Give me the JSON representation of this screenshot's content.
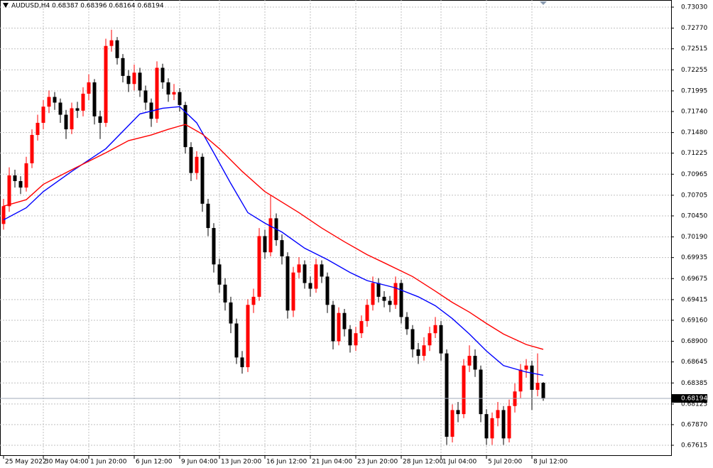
{
  "chart_data": {
    "type": "candlestick",
    "title": "AUDUSD,H4  0.68387 0.68396 0.68164 0.68194",
    "categories": [
      "25 May 2022",
      null,
      null,
      null,
      null,
      null,
      null,
      "30 May 04:00",
      null,
      null,
      null,
      null,
      null,
      null,
      null,
      "1 Jun 20:00",
      null,
      null,
      null,
      null,
      null,
      null,
      null,
      "6 Jun 12:00",
      null,
      null,
      null,
      null,
      null,
      null,
      null,
      "9 Jun 04:00",
      null,
      null,
      null,
      null,
      null,
      null,
      "13 Jun 20:00",
      null,
      null,
      null,
      null,
      null,
      null,
      null,
      "16 Jun 12:00",
      null,
      null,
      null,
      null,
      null,
      null,
      null,
      "21 Jun 04:00",
      null,
      null,
      null,
      null,
      null,
      null,
      null,
      "23 Jun 20:00",
      null,
      null,
      null,
      null,
      null,
      null,
      null,
      "28 Jun 12:00",
      null,
      null,
      null,
      null,
      null,
      null,
      "1 Jul 04:00",
      null,
      null,
      null,
      null,
      null,
      null,
      null,
      "5 Jul 20:00",
      null,
      null,
      null,
      null,
      null,
      null,
      null,
      "8 Jul 12:00",
      null,
      null
    ],
    "open": [
      0.7035,
      0.7057,
      0.7095,
      0.7088,
      0.708,
      0.711,
      0.7145,
      0.716,
      0.718,
      0.7192,
      0.7185,
      0.717,
      0.7152,
      0.7178,
      0.7175,
      0.7196,
      0.721,
      0.7168,
      0.716,
      0.7255,
      0.7262,
      0.724,
      0.7218,
      0.7208,
      0.7222,
      0.72,
      0.7185,
      0.7165,
      0.7228,
      0.721,
      0.7195,
      0.7198,
      0.7182,
      0.713,
      0.7098,
      0.7118,
      0.706,
      0.703,
      0.6985,
      0.696,
      0.6938,
      0.6912,
      0.687,
      0.6858,
      0.6935,
      0.6945,
      0.702,
      0.7,
      0.7042,
      0.7015,
      0.6995,
      0.6928,
      0.6975,
      0.6985,
      0.6962,
      0.6955,
      0.6985,
      0.697,
      0.6935,
      0.689,
      0.6925,
      0.6905,
      0.6885,
      0.69,
      0.6915,
      0.6935,
      0.6962,
      0.6945,
      0.694,
      0.6935,
      0.6962,
      0.692,
      0.6905,
      0.688,
      0.6872,
      0.6885,
      0.69,
      0.691,
      0.6875,
      0.6772,
      0.6805,
      0.68,
      0.686,
      0.6872,
      0.6855,
      0.68,
      0.677,
      0.6795,
      0.6805,
      0.677,
      0.681,
      0.6828,
      0.6855,
      0.686,
      0.683,
      0.68387
    ],
    "high": [
      0.7066,
      0.7105,
      0.7102,
      0.7094,
      0.7118,
      0.7152,
      0.717,
      0.7188,
      0.72,
      0.7198,
      0.719,
      0.7176,
      0.7185,
      0.7186,
      0.7204,
      0.722,
      0.7214,
      0.7175,
      0.7264,
      0.7275,
      0.7266,
      0.7245,
      0.7225,
      0.7232,
      0.7228,
      0.7206,
      0.719,
      0.7236,
      0.7233,
      0.7215,
      0.7208,
      0.7203,
      0.7186,
      0.7136,
      0.7125,
      0.7122,
      0.7066,
      0.7036,
      0.6992,
      0.6968,
      0.6945,
      0.6918,
      0.6878,
      0.6942,
      0.6955,
      0.703,
      0.7028,
      0.707,
      0.7048,
      0.7022,
      0.7,
      0.6982,
      0.6994,
      0.699,
      0.697,
      0.6992,
      0.699,
      0.6975,
      0.694,
      0.6932,
      0.693,
      0.691,
      0.6908,
      0.6922,
      0.6942,
      0.697,
      0.6968,
      0.6952,
      0.6946,
      0.697,
      0.6966,
      0.6926,
      0.691,
      0.6888,
      0.6895,
      0.6908,
      0.692,
      0.6915,
      0.688,
      0.6812,
      0.6815,
      0.6868,
      0.6885,
      0.688,
      0.686,
      0.6806,
      0.6802,
      0.6815,
      0.681,
      0.6818,
      0.6838,
      0.6862,
      0.6868,
      0.6866,
      0.6875,
      0.68396
    ],
    "low": [
      0.7028,
      0.705,
      0.708,
      0.7072,
      0.7075,
      0.7104,
      0.7138,
      0.7152,
      0.7172,
      0.7176,
      0.716,
      0.714,
      0.7146,
      0.7166,
      0.7168,
      0.7188,
      0.7158,
      0.714,
      0.7155,
      0.7248,
      0.7232,
      0.721,
      0.7198,
      0.72,
      0.7192,
      0.7176,
      0.7155,
      0.716,
      0.7202,
      0.7186,
      0.7188,
      0.7174,
      0.7122,
      0.7088,
      0.709,
      0.705,
      0.702,
      0.6975,
      0.695,
      0.6928,
      0.69,
      0.6862,
      0.685,
      0.6852,
      0.6925,
      0.694,
      0.6992,
      0.6995,
      0.7008,
      0.6985,
      0.6918,
      0.692,
      0.6968,
      0.6955,
      0.6945,
      0.695,
      0.6962,
      0.6925,
      0.688,
      0.6885,
      0.6896,
      0.6876,
      0.6878,
      0.6894,
      0.6908,
      0.6928,
      0.6938,
      0.6932,
      0.6926,
      0.693,
      0.6912,
      0.6898,
      0.687,
      0.6862,
      0.6866,
      0.6878,
      0.6894,
      0.6866,
      0.6762,
      0.6765,
      0.679,
      0.6795,
      0.6852,
      0.6846,
      0.679,
      0.6762,
      0.6762,
      0.6785,
      0.6762,
      0.6765,
      0.6802,
      0.682,
      0.6845,
      0.6805,
      0.6822,
      0.68164
    ],
    "close": [
      0.7057,
      0.7095,
      0.7088,
      0.708,
      0.711,
      0.7145,
      0.716,
      0.718,
      0.7192,
      0.7185,
      0.717,
      0.7152,
      0.7178,
      0.7175,
      0.7196,
      0.721,
      0.7168,
      0.716,
      0.7255,
      0.7262,
      0.724,
      0.7218,
      0.7208,
      0.7222,
      0.72,
      0.7185,
      0.7165,
      0.7228,
      0.721,
      0.7195,
      0.7198,
      0.7182,
      0.713,
      0.7098,
      0.7118,
      0.706,
      0.703,
      0.6985,
      0.696,
      0.6938,
      0.6912,
      0.687,
      0.6858,
      0.6935,
      0.6945,
      0.702,
      0.7,
      0.7042,
      0.7015,
      0.6995,
      0.6928,
      0.6975,
      0.6985,
      0.6962,
      0.6955,
      0.6985,
      0.697,
      0.6935,
      0.689,
      0.6925,
      0.6905,
      0.6885,
      0.69,
      0.6915,
      0.6935,
      0.6962,
      0.6945,
      0.694,
      0.6935,
      0.6962,
      0.692,
      0.6905,
      0.688,
      0.6872,
      0.6885,
      0.69,
      0.691,
      0.6875,
      0.6772,
      0.6805,
      0.68,
      0.686,
      0.6872,
      0.6855,
      0.68,
      0.677,
      0.6795,
      0.6805,
      0.677,
      0.681,
      0.6828,
      0.6855,
      0.686,
      0.683,
      0.68387,
      0.68194
    ],
    "up_color": "#ff0000",
    "down_color": "#000000",
    "series": [
      {
        "color": "#0000ff",
        "x": [
          0,
          4,
          7,
          12,
          18,
          24,
          28,
          31,
          34,
          37,
          40,
          43,
          46,
          49,
          53,
          57,
          61,
          64,
          69,
          73,
          76,
          79,
          82,
          85,
          88,
          92,
          95
        ],
        "values": [
          0.704,
          0.7055,
          0.7075,
          0.71,
          0.7128,
          0.7171,
          0.7178,
          0.718,
          0.716,
          0.7123,
          0.7085,
          0.7049,
          0.7036,
          0.7025,
          0.7005,
          0.6991,
          0.6975,
          0.6965,
          0.6956,
          0.6945,
          0.6934,
          0.6918,
          0.6899,
          0.6878,
          0.686,
          0.6852,
          0.6848
        ]
      },
      {
        "color": "#ff0000",
        "x": [
          0,
          4,
          7,
          12,
          18,
          22,
          26,
          29,
          32,
          35,
          38,
          42,
          46,
          52,
          56,
          60,
          64,
          67,
          72,
          76,
          79,
          82,
          85,
          88,
          92,
          95
        ],
        "values": [
          0.7057,
          0.7065,
          0.7084,
          0.7102,
          0.7123,
          0.7138,
          0.7145,
          0.7152,
          0.7158,
          0.7146,
          0.7128,
          0.71,
          0.7075,
          0.7049,
          0.703,
          0.7013,
          0.6997,
          0.6987,
          0.697,
          0.6952,
          0.6938,
          0.6926,
          0.6912,
          0.6899,
          0.6886,
          0.688
        ]
      }
    ],
    "ylim": [
      0.67492,
      0.73118
    ],
    "yticks": [
      {
        "value": 0.7303,
        "label": "0.73030"
      },
      {
        "value": 0.7277,
        "label": "0.72770"
      },
      {
        "value": 0.72515,
        "label": "0.72515"
      },
      {
        "value": 0.72255,
        "label": "0.72255"
      },
      {
        "value": 0.71995,
        "label": "0.71995"
      },
      {
        "value": 0.7174,
        "label": "0.71740"
      },
      {
        "value": 0.7148,
        "label": "0.71480"
      },
      {
        "value": 0.71225,
        "label": "0.71225"
      },
      {
        "value": 0.70965,
        "label": "0.70965"
      },
      {
        "value": 0.70705,
        "label": "0.70705"
      },
      {
        "value": 0.7045,
        "label": "0.70450"
      },
      {
        "value": 0.7019,
        "label": "0.70190"
      },
      {
        "value": 0.69935,
        "label": "0.69935"
      },
      {
        "value": 0.69675,
        "label": "0.69675"
      },
      {
        "value": 0.69415,
        "label": "0.69415"
      },
      {
        "value": 0.6916,
        "label": "0.69160"
      },
      {
        "value": 0.689,
        "label": "0.68900"
      },
      {
        "value": 0.68645,
        "label": "0.68645"
      },
      {
        "value": 0.68385,
        "label": "0.68385"
      },
      {
        "value": 0.68125,
        "label": "0.68125"
      },
      {
        "value": 0.6787,
        "label": "0.67870"
      },
      {
        "value": 0.67615,
        "label": "0.67615"
      }
    ],
    "last_price": 0.68194,
    "grid": true
  }
}
